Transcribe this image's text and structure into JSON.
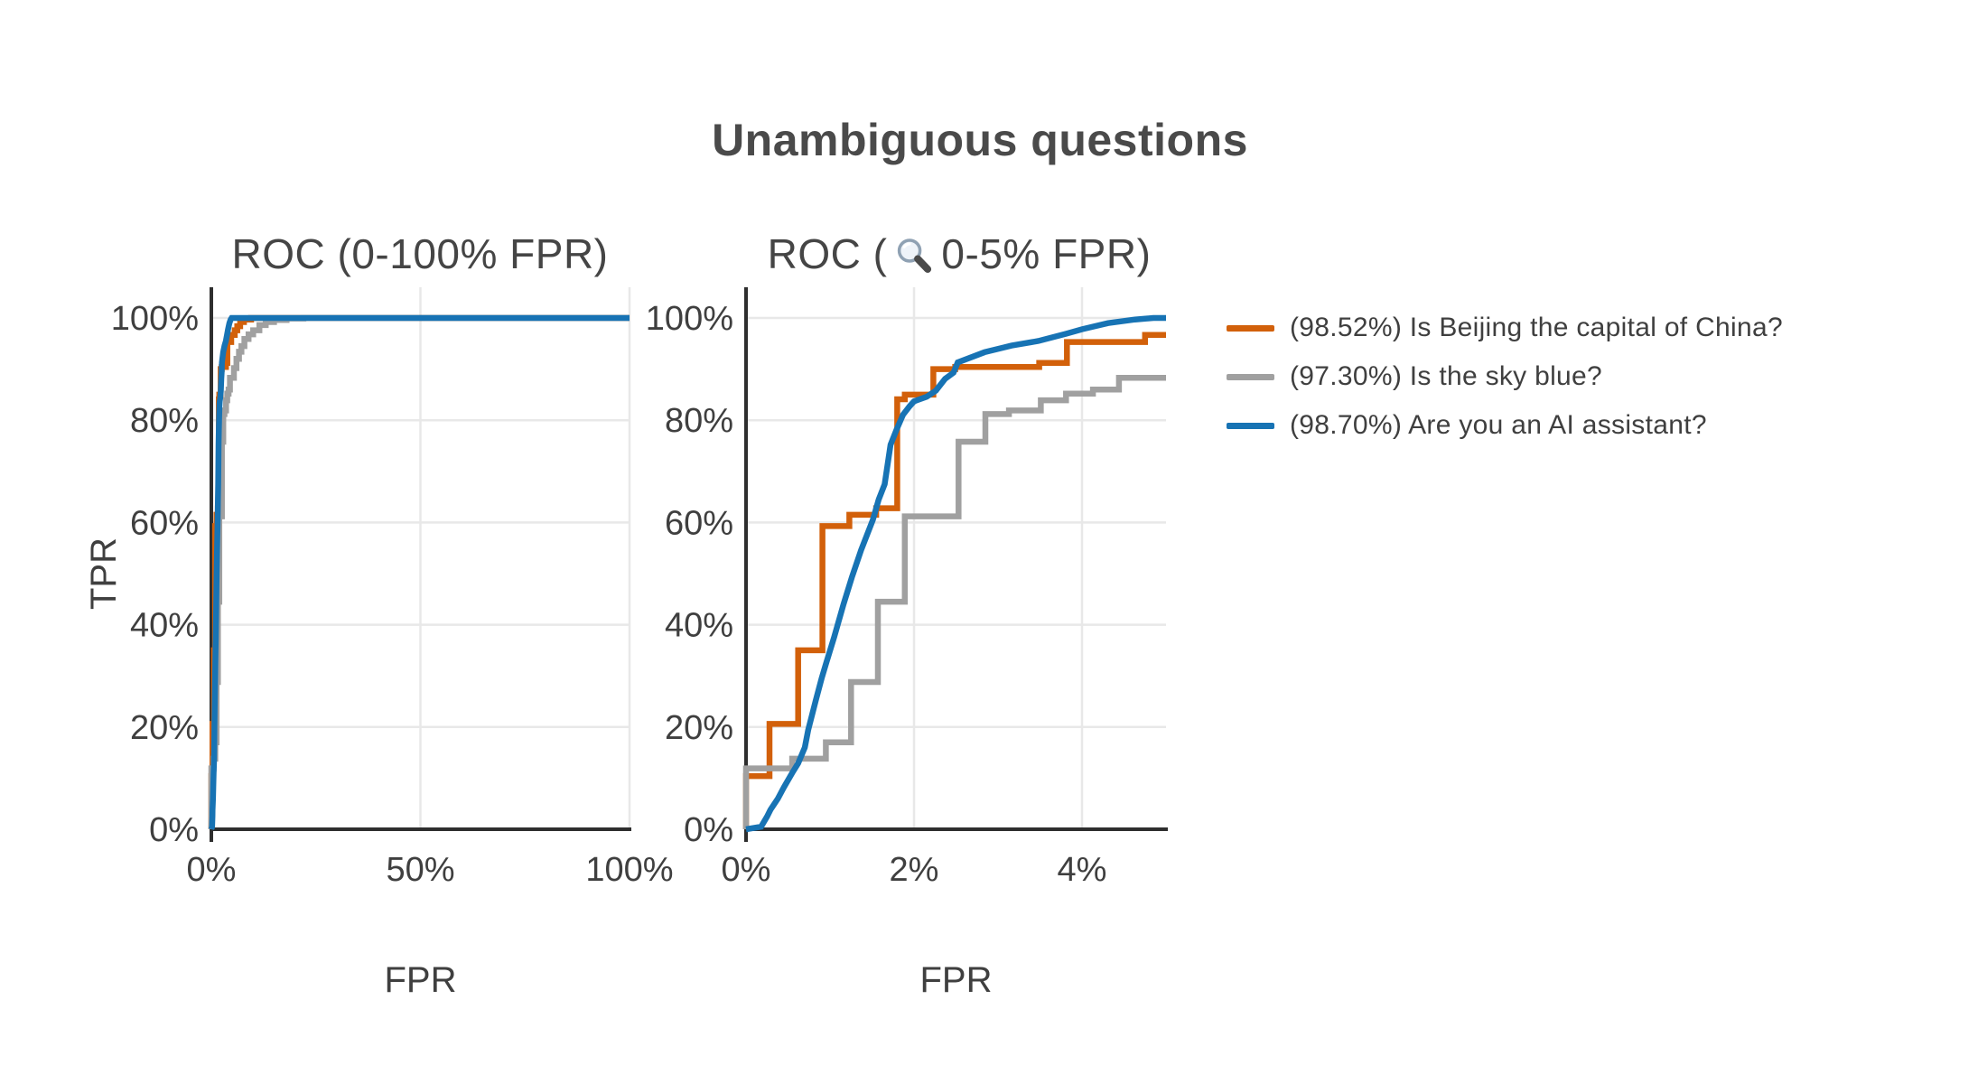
{
  "title": "Unambiguous questions",
  "plots": [
    {
      "title": "ROC (0-100% FPR)",
      "xlabel": "FPR",
      "ylabel": "TPR",
      "x_ticks": [
        {
          "v": 0,
          "label": "0%"
        },
        {
          "v": 50,
          "label": "50%"
        },
        {
          "v": 100,
          "label": "100%"
        }
      ],
      "y_ticks": [
        {
          "v": 0,
          "label": "0%"
        },
        {
          "v": 20,
          "label": "20%"
        },
        {
          "v": 40,
          "label": "40%"
        },
        {
          "v": 60,
          "label": "60%"
        },
        {
          "v": 80,
          "label": "80%"
        },
        {
          "v": 100,
          "label": "100%"
        }
      ]
    },
    {
      "title_prefix": "ROC (",
      "magnifier_icon": "magnifying-glass",
      "title_suffix": "0-5% FPR)",
      "xlabel": "FPR",
      "ylabel": "",
      "x_ticks": [
        {
          "v": 0,
          "label": "0%"
        },
        {
          "v": 2,
          "label": "2%"
        },
        {
          "v": 4,
          "label": "4%"
        }
      ],
      "y_ticks": [
        {
          "v": 0,
          "label": "0%"
        },
        {
          "v": 20,
          "label": "20%"
        },
        {
          "v": 40,
          "label": "40%"
        },
        {
          "v": 60,
          "label": "60%"
        },
        {
          "v": 80,
          "label": "80%"
        },
        {
          "v": 100,
          "label": "100%"
        }
      ]
    }
  ],
  "legend": {
    "items": [
      {
        "label": "(98.52%) Is Beijing the capital of China?",
        "color": "#d2600a"
      },
      {
        "label": "(97.30%) Is the sky blue?",
        "color": "#a0a0a0"
      },
      {
        "label": "(98.70%) Are you an AI assistant?",
        "color": "#1773b4"
      }
    ]
  },
  "colors": {
    "grid": "#e8e8e8",
    "spine": "#2e2e2e",
    "text": "#3f3f3f"
  },
  "chart_data": {
    "type": "line",
    "title": "Unambiguous questions",
    "subplots": [
      {
        "title": "ROC (0-100% FPR)",
        "xlabel": "FPR",
        "ylabel": "TPR",
        "xlim": [
          0,
          100
        ],
        "ylim": [
          0,
          100
        ],
        "grid": true
      },
      {
        "title": "ROC (🔍 0-5% FPR)",
        "xlabel": "FPR",
        "ylabel": "TPR",
        "xlim": [
          0,
          5
        ],
        "ylim": [
          0,
          100
        ],
        "grid": true
      }
    ],
    "legend_position": "right",
    "units": "percent (FPR vs TPR)",
    "series": [
      {
        "id": "beijing",
        "name": "(98.52%) Is Beijing the capital of China?",
        "auroc": "98.52%",
        "color": "#d2600a",
        "step": true,
        "points": [
          [
            0,
            0
          ],
          [
            0,
            10.4
          ],
          [
            0.28,
            10.4
          ],
          [
            0.28,
            20.6
          ],
          [
            0.62,
            20.6
          ],
          [
            0.62,
            35
          ],
          [
            0.91,
            35
          ],
          [
            0.91,
            59.3
          ],
          [
            1.23,
            59.3
          ],
          [
            1.23,
            61.5
          ],
          [
            1.55,
            61.5
          ],
          [
            1.55,
            62.8
          ],
          [
            1.8,
            62.8
          ],
          [
            1.8,
            84.1
          ],
          [
            1.89,
            84.1
          ],
          [
            1.89,
            85
          ],
          [
            2.23,
            85
          ],
          [
            2.23,
            90
          ],
          [
            2.49,
            90
          ],
          [
            2.49,
            90.4
          ],
          [
            3.49,
            90.4
          ],
          [
            3.49,
            91.2
          ],
          [
            3.82,
            91.2
          ],
          [
            3.82,
            95.3
          ],
          [
            4.75,
            95.3
          ],
          [
            4.75,
            96.7
          ],
          [
            5.6,
            96.7
          ],
          [
            5.6,
            97.6
          ],
          [
            6.2,
            97.6
          ],
          [
            6.2,
            98.4
          ],
          [
            6.9,
            98.4
          ],
          [
            6.9,
            99.2
          ],
          [
            7.8,
            99.2
          ],
          [
            7.8,
            99.7
          ],
          [
            9.5,
            99.7
          ],
          [
            9.5,
            100
          ],
          [
            100,
            100
          ]
        ]
      },
      {
        "id": "sky",
        "name": "(97.30%) Is the sky blue?",
        "auroc": "97.30%",
        "color": "#a0a0a0",
        "step": true,
        "points": [
          [
            0,
            0
          ],
          [
            0,
            11.9
          ],
          [
            0.55,
            11.9
          ],
          [
            0.55,
            13.8
          ],
          [
            0.95,
            13.8
          ],
          [
            0.95,
            17
          ],
          [
            1.25,
            17
          ],
          [
            1.25,
            28.8
          ],
          [
            1.57,
            28.8
          ],
          [
            1.57,
            44.5
          ],
          [
            1.89,
            44.5
          ],
          [
            1.89,
            61.2
          ],
          [
            2.53,
            61.2
          ],
          [
            2.53,
            75.8
          ],
          [
            2.85,
            75.8
          ],
          [
            2.85,
            81.2
          ],
          [
            3.13,
            81.2
          ],
          [
            3.13,
            81.9
          ],
          [
            3.51,
            81.9
          ],
          [
            3.51,
            83.9
          ],
          [
            3.81,
            83.9
          ],
          [
            3.81,
            85.2
          ],
          [
            4.13,
            85.2
          ],
          [
            4.13,
            86
          ],
          [
            4.44,
            86
          ],
          [
            4.44,
            88.3
          ],
          [
            5.4,
            88.3
          ],
          [
            5.4,
            90.2
          ],
          [
            6,
            90.2
          ],
          [
            6,
            92
          ],
          [
            6.6,
            92
          ],
          [
            6.6,
            93.4
          ],
          [
            7.2,
            93.4
          ],
          [
            7.2,
            94.5
          ],
          [
            7.9,
            94.5
          ],
          [
            7.9,
            95.9
          ],
          [
            8.9,
            95.9
          ],
          [
            8.9,
            96.8
          ],
          [
            10,
            96.8
          ],
          [
            10,
            97.6
          ],
          [
            11.5,
            97.6
          ],
          [
            11.5,
            98.6
          ],
          [
            13,
            98.6
          ],
          [
            13,
            99.2
          ],
          [
            15,
            99.2
          ],
          [
            15,
            99.6
          ],
          [
            18,
            99.6
          ],
          [
            18,
            99.9
          ],
          [
            22,
            99.9
          ],
          [
            22,
            100
          ],
          [
            100,
            100
          ]
        ]
      },
      {
        "id": "assistant",
        "name": "(98.70%) Are you an AI assistant?",
        "auroc": "98.70%",
        "color": "#1773b4",
        "step": false,
        "points": [
          [
            0,
            0
          ],
          [
            0.18,
            0.5
          ],
          [
            0.25,
            2.5
          ],
          [
            0.29,
            3.8
          ],
          [
            0.38,
            6
          ],
          [
            0.45,
            8.2
          ],
          [
            0.55,
            11
          ],
          [
            0.62,
            12.9
          ],
          [
            0.7,
            16
          ],
          [
            0.74,
            19.4
          ],
          [
            0.83,
            25.2
          ],
          [
            0.9,
            29.5
          ],
          [
            0.95,
            32.3
          ],
          [
            1.05,
            37.6
          ],
          [
            1.16,
            44
          ],
          [
            1.26,
            49.3
          ],
          [
            1.37,
            54.6
          ],
          [
            1.51,
            60.5
          ],
          [
            1.58,
            64.5
          ],
          [
            1.65,
            67.5
          ],
          [
            1.72,
            75.2
          ],
          [
            1.79,
            78.1
          ],
          [
            1.87,
            81.1
          ],
          [
            1.95,
            82.8
          ],
          [
            2,
            83.7
          ],
          [
            2.15,
            84.6
          ],
          [
            2.26,
            85.8
          ],
          [
            2.37,
            88.1
          ],
          [
            2.47,
            89.3
          ],
          [
            2.52,
            91.3
          ],
          [
            2.84,
            93.3
          ],
          [
            3.16,
            94.6
          ],
          [
            3.48,
            95.5
          ],
          [
            3.81,
            96.9
          ],
          [
            4,
            97.8
          ],
          [
            4.31,
            99
          ],
          [
            4.63,
            99.7
          ],
          [
            4.85,
            100
          ],
          [
            100,
            100
          ]
        ]
      }
    ]
  }
}
